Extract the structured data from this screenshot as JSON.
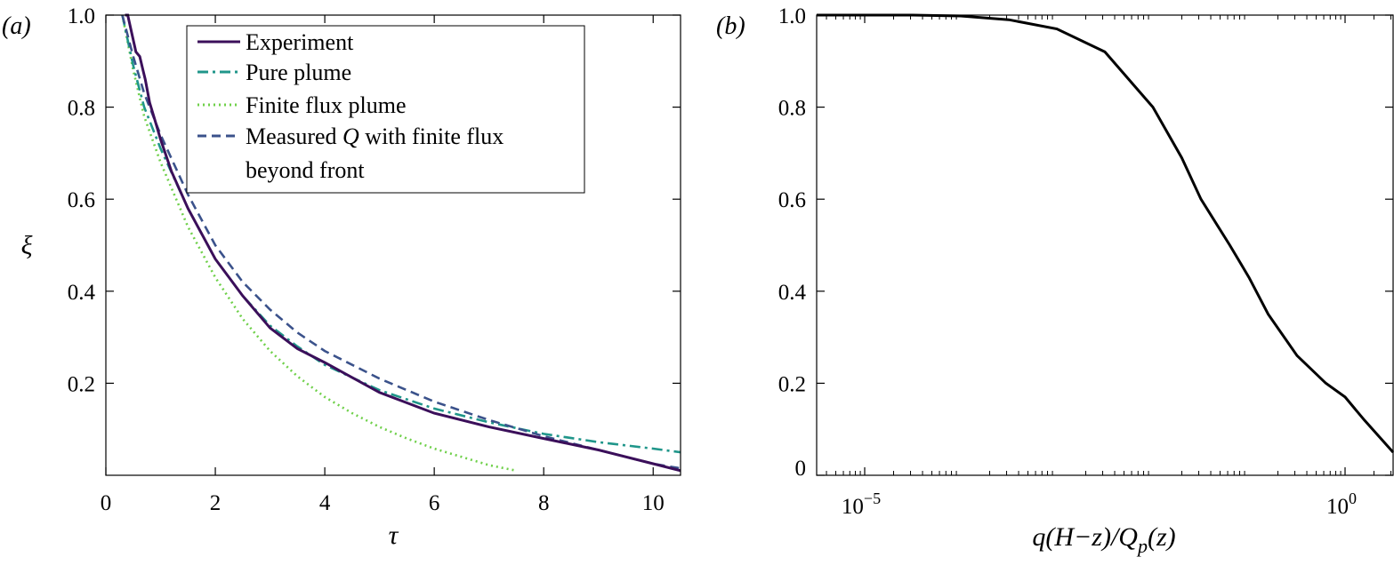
{
  "figure": {
    "panel_a_label": "(a)",
    "panel_b_label": "(b)"
  },
  "chart_data": [
    {
      "type": "line",
      "panel": "(a)",
      "xlabel": "τ",
      "ylabel": "ξ",
      "xlim": [
        0,
        10.5
      ],
      "ylim": [
        0,
        1.0
      ],
      "xticks": [
        0,
        2,
        4,
        6,
        8,
        10
      ],
      "xtick_labels": [
        "0",
        "2",
        "4",
        "6",
        "8",
        "10"
      ],
      "yticks": [
        0.2,
        0.4,
        0.6,
        0.8,
        1.0
      ],
      "ytick_labels": [
        "0.2",
        "0.4",
        "0.6",
        "0.8",
        "1.0"
      ],
      "grid": false,
      "legend_position": "top-right",
      "series": [
        {
          "name": "Experiment",
          "color": "#3b0f5a",
          "style": "solid",
          "x": [
            0.35,
            0.4,
            0.55,
            0.62,
            0.68,
            0.72,
            0.8,
            0.9,
            1.0,
            1.2,
            1.5,
            2.0,
            2.5,
            3.0,
            3.5,
            4.0,
            5.0,
            6.0,
            7.0,
            8.0,
            9.0,
            10.0,
            10.5
          ],
          "y": [
            1.0,
            1.0,
            0.92,
            0.91,
            0.88,
            0.86,
            0.81,
            0.77,
            0.73,
            0.66,
            0.58,
            0.47,
            0.39,
            0.32,
            0.275,
            0.245,
            0.18,
            0.135,
            0.105,
            0.08,
            0.055,
            0.025,
            0.01
          ]
        },
        {
          "name": "Pure plume",
          "color": "#20968a",
          "style": "dashdot",
          "x": [
            0.3,
            0.5,
            0.7,
            1.0,
            1.5,
            2.0,
            2.5,
            3.0,
            3.5,
            4.0,
            5.0,
            6.0,
            7.0,
            8.0,
            9.0,
            10.0,
            10.5
          ],
          "y": [
            1.0,
            0.89,
            0.8,
            0.71,
            0.58,
            0.47,
            0.39,
            0.325,
            0.28,
            0.24,
            0.185,
            0.145,
            0.115,
            0.09,
            0.072,
            0.058,
            0.05
          ]
        },
        {
          "name": "Finite flux plume",
          "color": "#6fd04a",
          "style": "dotted",
          "x": [
            0.3,
            0.5,
            0.7,
            1.0,
            1.5,
            2.0,
            2.5,
            3.0,
            3.5,
            4.0,
            4.5,
            5.0,
            5.5,
            6.0,
            6.5,
            7.0,
            7.5
          ],
          "y": [
            1.0,
            0.88,
            0.78,
            0.68,
            0.54,
            0.43,
            0.34,
            0.27,
            0.215,
            0.17,
            0.135,
            0.105,
            0.08,
            0.058,
            0.04,
            0.022,
            0.01
          ]
        },
        {
          "name": "Measured Q with finite flux beyond front",
          "color": "#3b528b",
          "style": "dashed",
          "x": [
            0.3,
            0.5,
            0.7,
            1.0,
            1.5,
            2.0,
            2.5,
            3.0,
            3.5,
            4.0,
            5.0,
            6.0,
            7.0,
            8.0,
            9.0,
            10.0,
            10.5
          ],
          "y": [
            1.0,
            0.91,
            0.83,
            0.74,
            0.61,
            0.5,
            0.42,
            0.36,
            0.31,
            0.27,
            0.21,
            0.16,
            0.12,
            0.085,
            0.055,
            0.025,
            0.015
          ]
        }
      ],
      "legend": {
        "entries": [
          {
            "label": "Experiment"
          },
          {
            "label": "Pure plume"
          },
          {
            "label": "Finite flux plume"
          },
          {
            "label_prefix": "Measured ",
            "label_italic": "Q",
            "label_suffix": " with finite flux",
            "label_line2": "beyond front"
          }
        ]
      }
    },
    {
      "type": "line",
      "panel": "(b)",
      "xlabel": "q(H−z)/Qp(z)",
      "xscale": "log",
      "xlim_log10": [
        -5.5,
        0.5
      ],
      "ylim": [
        0,
        1.0
      ],
      "xticks_log10": [
        -5,
        0
      ],
      "yticks": [
        0,
        0.2,
        0.4,
        0.6,
        0.8,
        1.0
      ],
      "ytick_labels": [
        "0",
        "0.2",
        "0.4",
        "0.6",
        "0.8",
        "1.0"
      ],
      "grid": false,
      "series": [
        {
          "color": "#000000",
          "style": "solid",
          "x_log10": [
            -5.5,
            -4.5,
            -4.0,
            -3.5,
            -3.0,
            -2.5,
            -2.0,
            -1.7,
            -1.5,
            -1.2,
            -1.0,
            -0.8,
            -0.5,
            -0.2,
            0.0,
            0.2,
            0.5
          ],
          "y": [
            1.0,
            1.0,
            0.998,
            0.99,
            0.97,
            0.92,
            0.8,
            0.69,
            0.6,
            0.5,
            0.43,
            0.35,
            0.26,
            0.2,
            0.17,
            0.12,
            0.05
          ]
        }
      ]
    }
  ]
}
